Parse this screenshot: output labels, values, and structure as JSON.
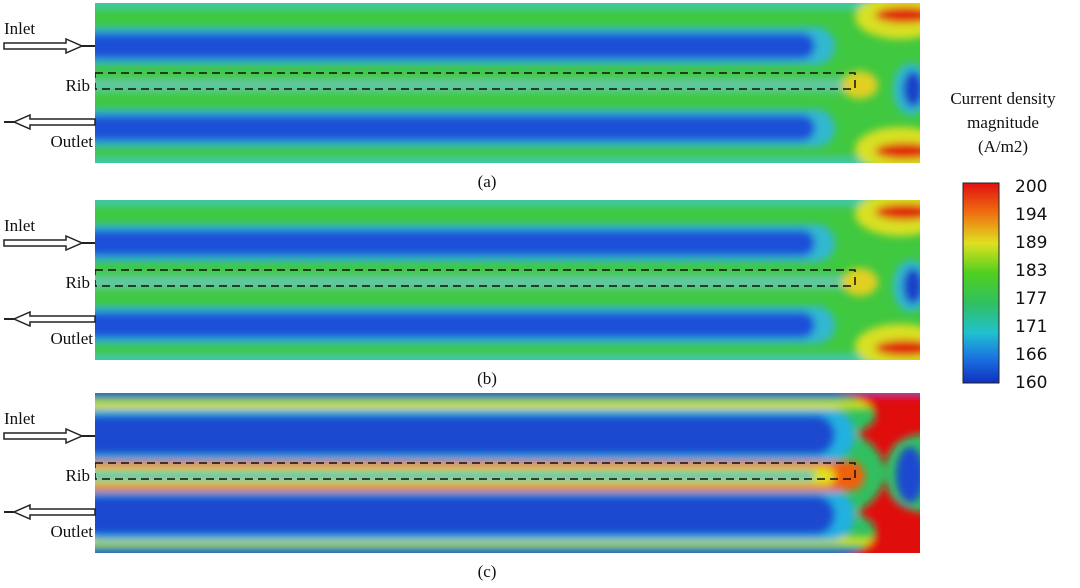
{
  "panels": [
    {
      "label": "(a)",
      "inlet": "Inlet",
      "rib": "Rib",
      "outlet": "Outlet"
    },
    {
      "label": "(b)",
      "inlet": "Inlet",
      "rib": "Rib",
      "outlet": "Outlet"
    },
    {
      "label": "(c)",
      "inlet": "Inlet",
      "rib": "Rib",
      "outlet": "Outlet"
    }
  ],
  "colorbar": {
    "title": [
      "Current density",
      "magnitude",
      "(A/m2)"
    ],
    "ticks": [
      200,
      194,
      189,
      183,
      177,
      171,
      166,
      160
    ]
  }
}
